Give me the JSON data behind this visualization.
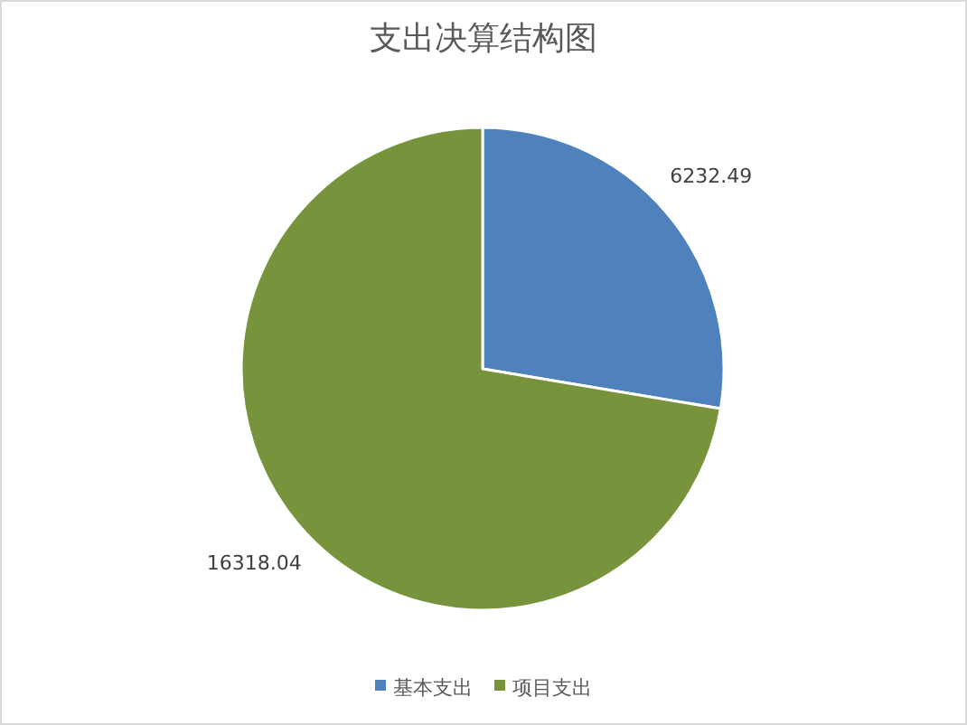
{
  "chart_data": {
    "type": "pie",
    "title": "支出决算结构图",
    "categories": [
      "基本支出",
      "项目支出"
    ],
    "values": [
      6232.49,
      16318.04
    ],
    "colors": [
      "#4f81bd",
      "#77933c"
    ],
    "data_labels": true,
    "legend": "bottom"
  }
}
